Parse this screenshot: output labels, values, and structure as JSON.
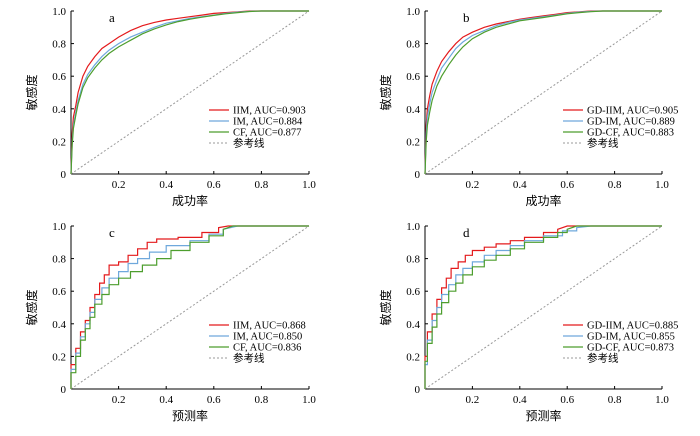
{
  "colors": {
    "red": "#e41a1c",
    "blue": "#6fa8dc",
    "green": "#4d9e2e",
    "ref": "#999999",
    "axis": "#000000"
  },
  "chart_data": [
    {
      "type": "line",
      "panel_label": "a",
      "xlabel": "成功率",
      "ylabel": "敏感度",
      "xlim": [
        0,
        1
      ],
      "ylim": [
        0,
        1
      ],
      "xticks": [
        "0.2",
        "0.4",
        "0.6",
        "0.8",
        "1.0"
      ],
      "yticks": [
        "0",
        "0.2",
        "0.4",
        "0.6",
        "0.8",
        "1.0"
      ],
      "legend_position": "lower-right",
      "series": [
        {
          "name": "IIM, AUC=0.903",
          "color": "red",
          "x": [
            0,
            0.005,
            0.01,
            0.02,
            0.03,
            0.05,
            0.07,
            0.1,
            0.13,
            0.16,
            0.2,
            0.25,
            0.3,
            0.35,
            0.4,
            0.45,
            0.5,
            0.55,
            0.6,
            0.65,
            0.7,
            0.75,
            0.8,
            1.0
          ],
          "y": [
            0,
            0.25,
            0.35,
            0.42,
            0.5,
            0.6,
            0.66,
            0.72,
            0.77,
            0.8,
            0.84,
            0.88,
            0.91,
            0.93,
            0.945,
            0.955,
            0.965,
            0.975,
            0.985,
            0.99,
            0.995,
            1.0,
            1.0,
            1.0
          ]
        },
        {
          "name": "IM, AUC=0.884",
          "color": "blue",
          "x": [
            0,
            0.005,
            0.01,
            0.02,
            0.03,
            0.05,
            0.07,
            0.1,
            0.13,
            0.16,
            0.2,
            0.25,
            0.3,
            0.35,
            0.4,
            0.45,
            0.5,
            0.55,
            0.6,
            0.65,
            0.7,
            0.75,
            0.8,
            1.0
          ],
          "y": [
            0,
            0.2,
            0.3,
            0.38,
            0.45,
            0.55,
            0.61,
            0.67,
            0.72,
            0.76,
            0.8,
            0.84,
            0.87,
            0.9,
            0.925,
            0.94,
            0.955,
            0.965,
            0.975,
            0.985,
            0.993,
            0.998,
            1.0,
            1.0
          ]
        },
        {
          "name": "CF, AUC=0.877",
          "color": "green",
          "x": [
            0,
            0.005,
            0.01,
            0.02,
            0.03,
            0.05,
            0.07,
            0.1,
            0.13,
            0.16,
            0.2,
            0.25,
            0.3,
            0.35,
            0.4,
            0.45,
            0.5,
            0.55,
            0.6,
            0.65,
            0.7,
            0.75,
            0.8,
            1.0
          ],
          "y": [
            0,
            0.18,
            0.28,
            0.36,
            0.43,
            0.53,
            0.59,
            0.65,
            0.7,
            0.74,
            0.78,
            0.82,
            0.86,
            0.89,
            0.915,
            0.935,
            0.95,
            0.962,
            0.973,
            0.983,
            0.99,
            0.997,
            1.0,
            1.0
          ]
        },
        {
          "name": "参考线",
          "color": "ref",
          "dashed": true,
          "x": [
            0,
            1
          ],
          "y": [
            0,
            1
          ]
        }
      ]
    },
    {
      "type": "line",
      "panel_label": "b",
      "xlabel": "成功率",
      "ylabel": "敏感度",
      "xlim": [
        0,
        1
      ],
      "ylim": [
        0,
        1
      ],
      "xticks": [
        "0.2",
        "0.4",
        "0.6",
        "0.8",
        "1.0"
      ],
      "yticks": [
        "0",
        "0.2",
        "0.4",
        "0.6",
        "0.8",
        "1.0"
      ],
      "legend_position": "lower-right",
      "series": [
        {
          "name": "GD-IIM, AUC=0.905",
          "color": "red",
          "x": [
            0,
            0.005,
            0.01,
            0.02,
            0.03,
            0.05,
            0.07,
            0.1,
            0.13,
            0.16,
            0.2,
            0.25,
            0.3,
            0.35,
            0.4,
            0.45,
            0.5,
            0.55,
            0.6,
            0.65,
            0.7,
            0.75,
            1.0
          ],
          "y": [
            0,
            0.3,
            0.4,
            0.48,
            0.55,
            0.63,
            0.69,
            0.75,
            0.8,
            0.84,
            0.87,
            0.9,
            0.92,
            0.935,
            0.95,
            0.96,
            0.97,
            0.98,
            0.99,
            0.995,
            1.0,
            1.0,
            1.0
          ]
        },
        {
          "name": "GD-IM, AUC=0.889",
          "color": "blue",
          "x": [
            0,
            0.005,
            0.01,
            0.02,
            0.03,
            0.05,
            0.07,
            0.1,
            0.13,
            0.16,
            0.2,
            0.25,
            0.3,
            0.35,
            0.4,
            0.45,
            0.5,
            0.55,
            0.6,
            0.65,
            0.7,
            0.75,
            1.0
          ],
          "y": [
            0,
            0.25,
            0.35,
            0.43,
            0.5,
            0.58,
            0.65,
            0.71,
            0.77,
            0.81,
            0.85,
            0.88,
            0.91,
            0.93,
            0.945,
            0.955,
            0.965,
            0.975,
            0.985,
            0.993,
            0.998,
            1.0,
            1.0
          ]
        },
        {
          "name": "GD-CF, AUC=0.883",
          "color": "green",
          "x": [
            0,
            0.005,
            0.01,
            0.02,
            0.03,
            0.05,
            0.07,
            0.1,
            0.13,
            0.16,
            0.2,
            0.25,
            0.3,
            0.35,
            0.4,
            0.45,
            0.5,
            0.55,
            0.6,
            0.65,
            0.7,
            0.75,
            1.0
          ],
          "y": [
            0,
            0.2,
            0.3,
            0.38,
            0.45,
            0.54,
            0.6,
            0.67,
            0.73,
            0.78,
            0.83,
            0.87,
            0.9,
            0.92,
            0.94,
            0.95,
            0.96,
            0.972,
            0.983,
            0.99,
            0.996,
            1.0,
            1.0
          ]
        },
        {
          "name": "参考线",
          "color": "ref",
          "dashed": true,
          "x": [
            0,
            1
          ],
          "y": [
            0,
            1
          ]
        }
      ]
    },
    {
      "type": "line",
      "panel_label": "c",
      "xlabel": "预测率",
      "ylabel": "敏感度",
      "xlim": [
        0,
        1
      ],
      "ylim": [
        0,
        1
      ],
      "xticks": [
        "0.2",
        "0.4",
        "0.6",
        "0.8",
        "1.0"
      ],
      "yticks": [
        "0",
        "0.2",
        "0.4",
        "0.6",
        "0.8",
        "1.0"
      ],
      "legend_position": "lower-right",
      "series": [
        {
          "name": "IIM, AUC=0.868",
          "color": "red",
          "x": [
            0,
            0.0,
            0.02,
            0.02,
            0.04,
            0.04,
            0.06,
            0.06,
            0.08,
            0.08,
            0.1,
            0.1,
            0.12,
            0.12,
            0.14,
            0.14,
            0.16,
            0.16,
            0.2,
            0.2,
            0.24,
            0.24,
            0.28,
            0.28,
            0.32,
            0.32,
            0.36,
            0.36,
            0.45,
            0.45,
            0.55,
            0.55,
            0.62,
            0.62,
            0.66,
            1.0
          ],
          "y": [
            0,
            0.15,
            0.15,
            0.25,
            0.25,
            0.35,
            0.35,
            0.42,
            0.42,
            0.5,
            0.5,
            0.58,
            0.58,
            0.65,
            0.65,
            0.7,
            0.7,
            0.76,
            0.76,
            0.78,
            0.78,
            0.82,
            0.82,
            0.86,
            0.86,
            0.9,
            0.9,
            0.92,
            0.92,
            0.93,
            0.93,
            0.96,
            0.96,
            0.99,
            1.0,
            1.0
          ]
        },
        {
          "name": "IM, AUC=0.850",
          "color": "blue",
          "x": [
            0,
            0.0,
            0.02,
            0.02,
            0.04,
            0.04,
            0.06,
            0.06,
            0.08,
            0.08,
            0.1,
            0.1,
            0.13,
            0.13,
            0.16,
            0.16,
            0.2,
            0.2,
            0.24,
            0.24,
            0.28,
            0.28,
            0.33,
            0.33,
            0.4,
            0.4,
            0.5,
            0.5,
            0.58,
            0.58,
            0.64,
            0.64,
            0.7,
            1.0
          ],
          "y": [
            0,
            0.12,
            0.12,
            0.22,
            0.22,
            0.32,
            0.32,
            0.4,
            0.4,
            0.47,
            0.47,
            0.55,
            0.55,
            0.62,
            0.62,
            0.68,
            0.68,
            0.72,
            0.72,
            0.77,
            0.77,
            0.8,
            0.8,
            0.84,
            0.84,
            0.88,
            0.88,
            0.91,
            0.91,
            0.95,
            0.95,
            0.98,
            1.0,
            1.0
          ]
        },
        {
          "name": "CF, AUC=0.836",
          "color": "green",
          "x": [
            0,
            0.0,
            0.02,
            0.02,
            0.04,
            0.04,
            0.06,
            0.06,
            0.08,
            0.08,
            0.1,
            0.1,
            0.13,
            0.13,
            0.16,
            0.16,
            0.2,
            0.2,
            0.25,
            0.25,
            0.3,
            0.3,
            0.36,
            0.36,
            0.42,
            0.42,
            0.5,
            0.5,
            0.58,
            0.58,
            0.64,
            0.64,
            0.68,
            1.0
          ],
          "y": [
            0,
            0.1,
            0.1,
            0.2,
            0.2,
            0.3,
            0.3,
            0.37,
            0.37,
            0.44,
            0.44,
            0.52,
            0.52,
            0.58,
            0.58,
            0.64,
            0.64,
            0.68,
            0.68,
            0.72,
            0.72,
            0.76,
            0.76,
            0.8,
            0.8,
            0.85,
            0.85,
            0.9,
            0.9,
            0.94,
            0.94,
            0.98,
            1.0,
            1.0
          ]
        },
        {
          "name": "参考线",
          "color": "ref",
          "dashed": true,
          "x": [
            0,
            1
          ],
          "y": [
            0,
            1
          ]
        }
      ]
    },
    {
      "type": "line",
      "panel_label": "d",
      "xlabel": "预测率",
      "ylabel": "敏感度",
      "xlim": [
        0,
        1
      ],
      "ylim": [
        0,
        1
      ],
      "xticks": [
        "0.2",
        "0.4",
        "0.6",
        "0.8",
        "1.0"
      ],
      "yticks": [
        "0",
        "0.2",
        "0.4",
        "0.6",
        "0.8",
        "1.0"
      ],
      "legend_position": "lower-right",
      "series": [
        {
          "name": "GD-IIM, AUC=0.885",
          "color": "red",
          "x": [
            0,
            0.0,
            0.01,
            0.01,
            0.03,
            0.03,
            0.05,
            0.05,
            0.07,
            0.07,
            0.09,
            0.09,
            0.11,
            0.11,
            0.14,
            0.14,
            0.17,
            0.17,
            0.2,
            0.2,
            0.25,
            0.25,
            0.3,
            0.3,
            0.36,
            0.36,
            0.42,
            0.42,
            0.5,
            0.5,
            0.56,
            0.56,
            0.6,
            1.0
          ],
          "y": [
            0,
            0.2,
            0.2,
            0.35,
            0.35,
            0.46,
            0.46,
            0.55,
            0.55,
            0.62,
            0.62,
            0.68,
            0.68,
            0.74,
            0.74,
            0.78,
            0.78,
            0.82,
            0.82,
            0.85,
            0.85,
            0.87,
            0.87,
            0.89,
            0.89,
            0.91,
            0.91,
            0.93,
            0.93,
            0.96,
            0.96,
            0.98,
            1.0,
            1.0
          ]
        },
        {
          "name": "GD-IM, AUC=0.855",
          "color": "blue",
          "x": [
            0,
            0.0,
            0.01,
            0.01,
            0.03,
            0.03,
            0.05,
            0.05,
            0.07,
            0.07,
            0.1,
            0.1,
            0.13,
            0.13,
            0.16,
            0.16,
            0.2,
            0.2,
            0.25,
            0.25,
            0.3,
            0.3,
            0.36,
            0.36,
            0.42,
            0.42,
            0.5,
            0.5,
            0.58,
            0.58,
            0.64,
            0.64,
            0.7,
            1.0
          ],
          "y": [
            0,
            0.15,
            0.15,
            0.3,
            0.3,
            0.42,
            0.42,
            0.5,
            0.5,
            0.58,
            0.58,
            0.64,
            0.64,
            0.7,
            0.7,
            0.74,
            0.74,
            0.78,
            0.78,
            0.82,
            0.82,
            0.85,
            0.85,
            0.88,
            0.88,
            0.91,
            0.91,
            0.94,
            0.94,
            0.97,
            0.97,
            0.99,
            1.0,
            1.0
          ]
        },
        {
          "name": "GD-CF, AUC=0.873",
          "color": "green",
          "x": [
            0,
            0.0,
            0.01,
            0.01,
            0.03,
            0.03,
            0.05,
            0.05,
            0.07,
            0.07,
            0.1,
            0.1,
            0.13,
            0.13,
            0.16,
            0.16,
            0.2,
            0.2,
            0.25,
            0.25,
            0.3,
            0.3,
            0.36,
            0.36,
            0.42,
            0.42,
            0.5,
            0.5,
            0.56,
            0.56,
            0.6,
            0.6,
            0.64,
            1.0
          ],
          "y": [
            0,
            0.17,
            0.17,
            0.28,
            0.28,
            0.38,
            0.38,
            0.46,
            0.46,
            0.53,
            0.53,
            0.6,
            0.6,
            0.65,
            0.65,
            0.7,
            0.7,
            0.75,
            0.75,
            0.79,
            0.79,
            0.82,
            0.82,
            0.86,
            0.86,
            0.9,
            0.9,
            0.93,
            0.93,
            0.96,
            0.96,
            0.98,
            1.0,
            1.0
          ]
        },
        {
          "name": "参考线",
          "color": "ref",
          "dashed": true,
          "x": [
            0,
            1
          ],
          "y": [
            0,
            1
          ]
        }
      ]
    }
  ]
}
